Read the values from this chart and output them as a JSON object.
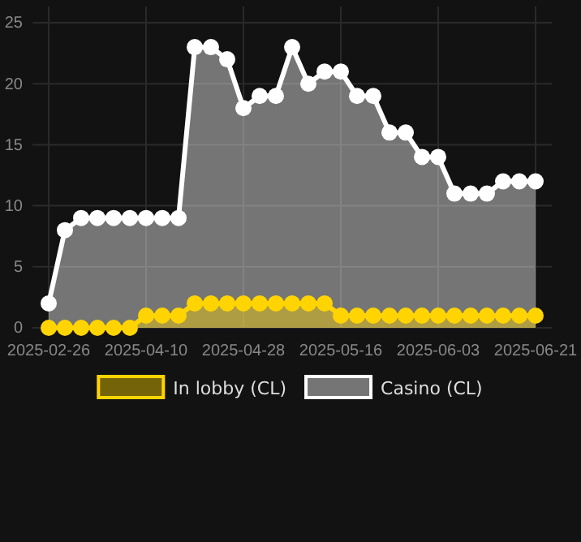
{
  "chart_data": {
    "type": "area",
    "categories": [
      "2025-02-26",
      null,
      null,
      null,
      null,
      null,
      "2025-04-10",
      null,
      null,
      null,
      null,
      null,
      "2025-04-28",
      null,
      null,
      null,
      null,
      null,
      "2025-05-16",
      null,
      null,
      null,
      null,
      null,
      "2025-06-03",
      null,
      null,
      null,
      null,
      null,
      "2025-06-21"
    ],
    "series": [
      {
        "name": "In lobby (CL)",
        "color": "#ffd400",
        "values": [
          0,
          0,
          0,
          0,
          0,
          0,
          1,
          1,
          1,
          2,
          2,
          2,
          2,
          2,
          2,
          2,
          2,
          2,
          1,
          1,
          1,
          1,
          1,
          1,
          1,
          1,
          1,
          1,
          1,
          1,
          1
        ]
      },
      {
        "name": "Casino (CL)",
        "color": "#ffffff",
        "values": [
          2,
          8,
          9,
          9,
          9,
          9,
          9,
          9,
          9,
          23,
          23,
          22,
          18,
          19,
          19,
          23,
          20,
          21,
          21,
          19,
          19,
          16,
          16,
          14,
          14,
          11,
          11,
          11,
          12,
          12,
          12
        ]
      }
    ],
    "ylim": [
      0,
      25
    ],
    "yticks": [
      0,
      5,
      10,
      15,
      20,
      25
    ],
    "grid": true,
    "legend": "bottom",
    "marker": "circle"
  }
}
